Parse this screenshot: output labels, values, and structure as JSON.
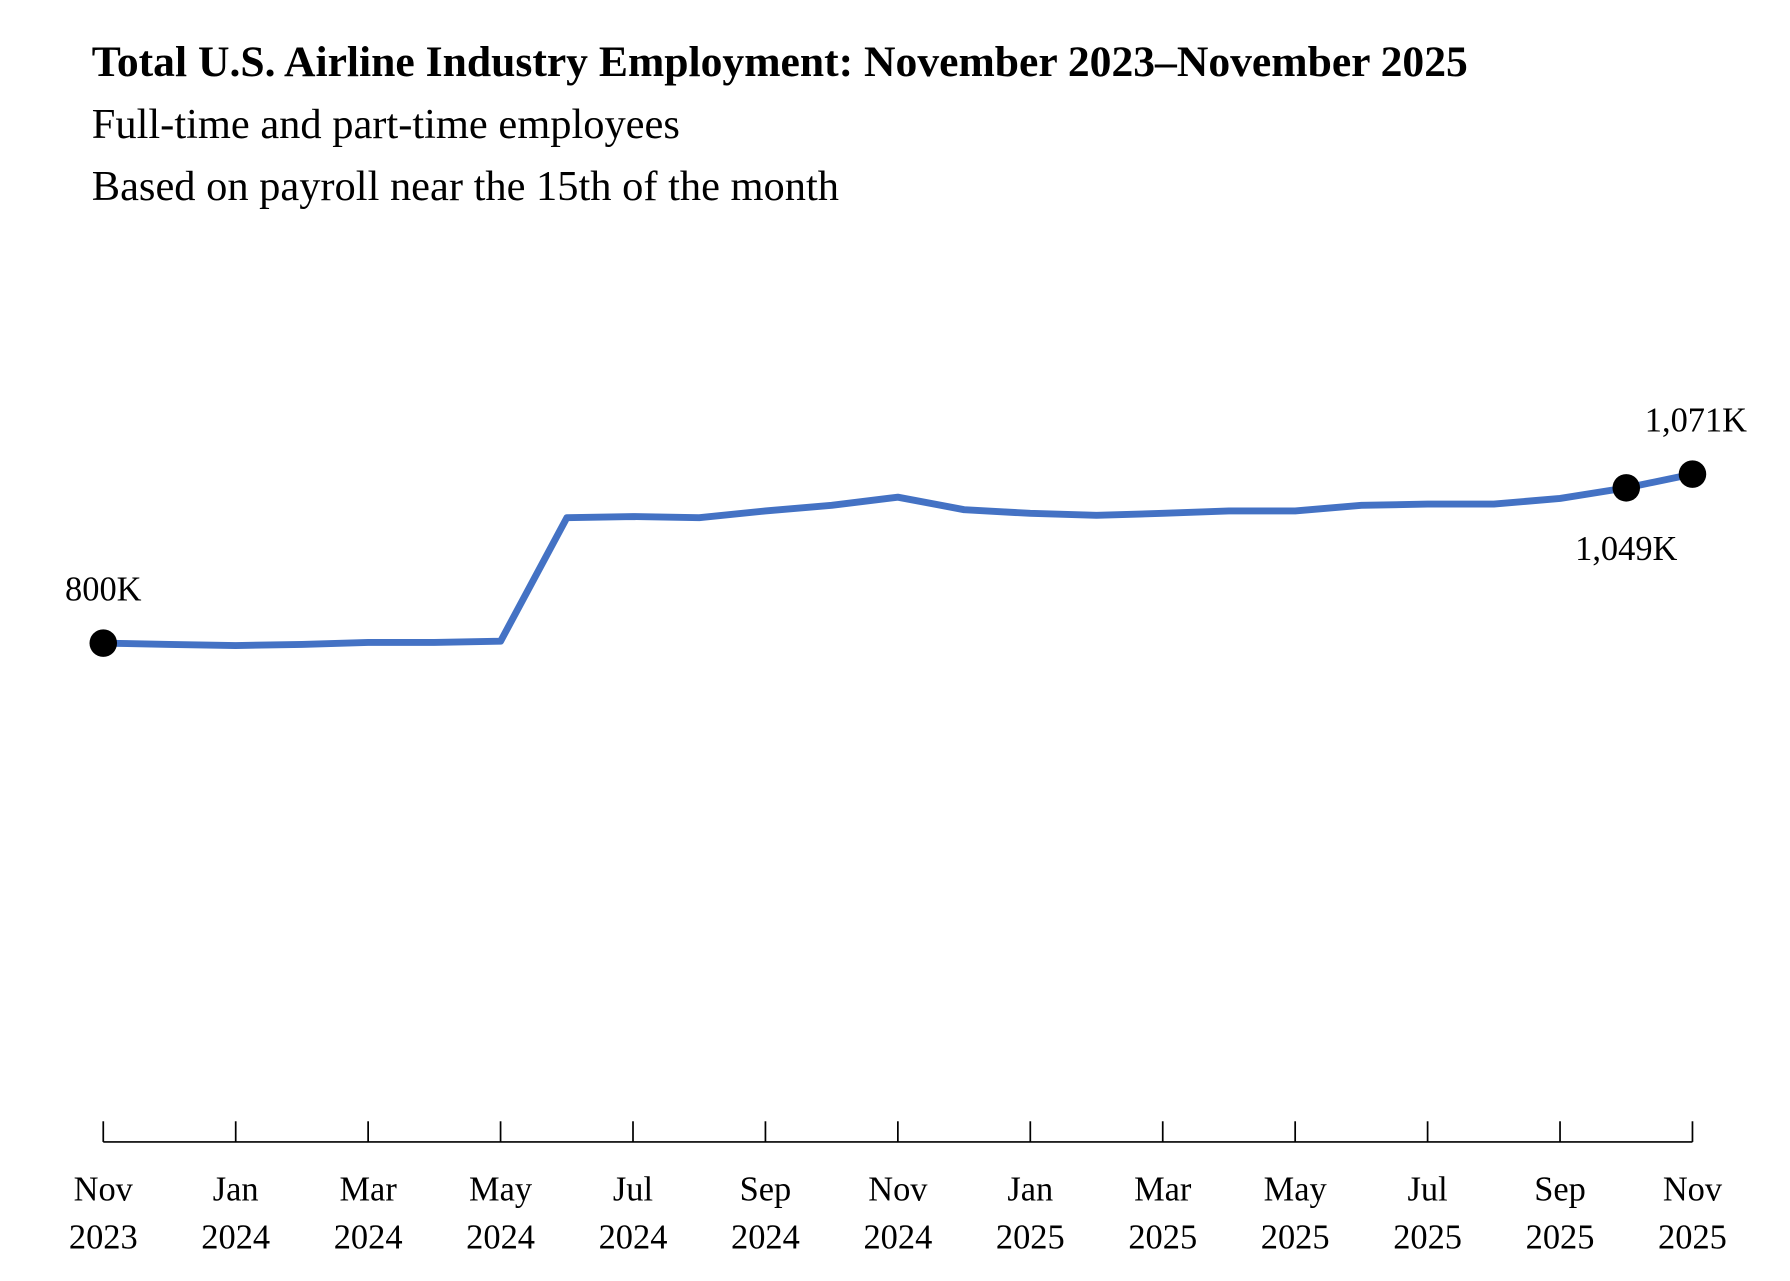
{
  "chart_data": {
    "type": "line",
    "title": "Total U.S. Airline Industry Employment: November 2023–November 2025",
    "subtitles": [
      "Full-time and part-time employees",
      "Based on payroll near the 15th of the month"
    ],
    "xlabel": "",
    "ylabel": "",
    "ylim": [
      0,
      1071
    ],
    "grid": false,
    "line_color": "#4472C4",
    "x": [
      "Nov 2023",
      "Dec 2023",
      "Jan 2024",
      "Feb 2024",
      "Mar 2024",
      "Apr 2024",
      "May 2024",
      "Jun 2024",
      "Jul 2024",
      "Aug 2024",
      "Sep 2024",
      "Oct 2024",
      "Nov 2024",
      "Dec 2024",
      "Jan 2025",
      "Feb 2025",
      "Mar 2025",
      "Apr 2025",
      "May 2025",
      "Jun 2025",
      "Jul 2025",
      "Aug 2025",
      "Sep 2025",
      "Oct 2025",
      "Nov 2025"
    ],
    "values": [
      800,
      798,
      796,
      798,
      801,
      801,
      803,
      1001,
      1003,
      1001,
      1012,
      1021,
      1034,
      1014,
      1008,
      1005,
      1008,
      1012,
      1012,
      1021,
      1023,
      1023,
      1032,
      1049,
      1071
    ],
    "tick_labels": [
      {
        "month": "Nov",
        "year": "2023",
        "index": 0
      },
      {
        "month": "Jan",
        "year": "2024",
        "index": 2
      },
      {
        "month": "Mar",
        "year": "2024",
        "index": 4
      },
      {
        "month": "May",
        "year": "2024",
        "index": 6
      },
      {
        "month": "Jul",
        "year": "2024",
        "index": 8
      },
      {
        "month": "Sep",
        "year": "2024",
        "index": 10
      },
      {
        "month": "Nov",
        "year": "2024",
        "index": 12
      },
      {
        "month": "Jan",
        "year": "2025",
        "index": 14
      },
      {
        "month": "Mar",
        "year": "2025",
        "index": 16
      },
      {
        "month": "May",
        "year": "2025",
        "index": 18
      },
      {
        "month": "Jul",
        "year": "2025",
        "index": 20
      },
      {
        "month": "Sep",
        "year": "2025",
        "index": 22
      },
      {
        "month": "Nov",
        "year": "2025",
        "index": 24
      }
    ],
    "annotations": [
      {
        "index": 0,
        "text": "800K",
        "position": "above"
      },
      {
        "index": 23,
        "text": "1,049K",
        "position": "below"
      },
      {
        "index": 24,
        "text": "1,071K",
        "position": "above"
      }
    ]
  }
}
